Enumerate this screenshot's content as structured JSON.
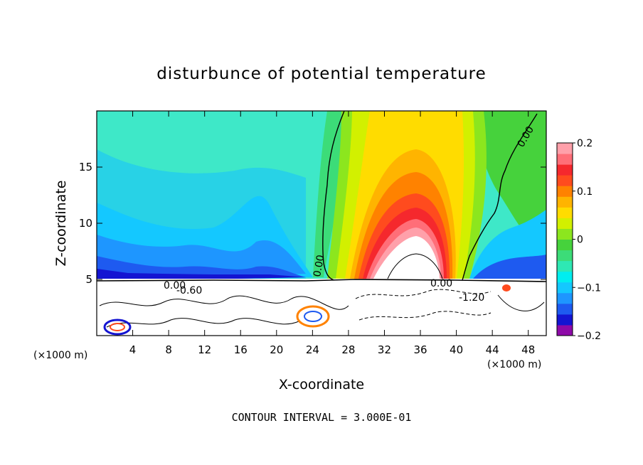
{
  "chart_data": {
    "type": "heatmap",
    "title": "disturbunce of potential temperature",
    "xlabel": "X-coordinate",
    "ylabel": "Z-coordinate",
    "x_unit_left": "(×1000 m)",
    "x_unit_right": "(×1000 m)",
    "xlim": [
      0,
      50
    ],
    "ylim": [
      0,
      20
    ],
    "x_ticks": [
      4,
      8,
      12,
      16,
      20,
      24,
      28,
      32,
      36,
      40,
      44,
      48
    ],
    "y_ticks": [
      5,
      10,
      15
    ],
    "colorbar": {
      "range": [
        -0.2,
        0.2
      ],
      "tick_values": [
        0.2,
        0.1,
        0,
        -0.1,
        -0.2
      ],
      "tick_labels": [
        "0.2",
        "0.1",
        "0",
        "−0.1",
        "−0.2"
      ],
      "colors": [
        "#8e0aa8",
        "#1414d2",
        "#1e5af0",
        "#1e96ff",
        "#14c8ff",
        "#00eef0",
        "#2ee8b4",
        "#3cdc78",
        "#46d23c",
        "#8ce61e",
        "#d2f000",
        "#ffdc00",
        "#ffb400",
        "#ff8200",
        "#ff4b1e",
        "#f5282d",
        "#ff6e78",
        "#ffa0aa"
      ]
    },
    "contour_interval_text": "CONTOUR INTERVAL = 3.000E-01",
    "contour_labels": [
      "0.00",
      "0.00",
      "0.00",
      "-0.60",
      "0.00",
      "-1.20"
    ],
    "field_notes": "warm dome centred near x=36 km above surface layer at z~5 km; cold anomalies near z~5 km on flanks"
  },
  "colors": {
    "background_field": "#3ee8c0",
    "warm_core": "#ffffff",
    "lower_region": "#ffffff"
  }
}
